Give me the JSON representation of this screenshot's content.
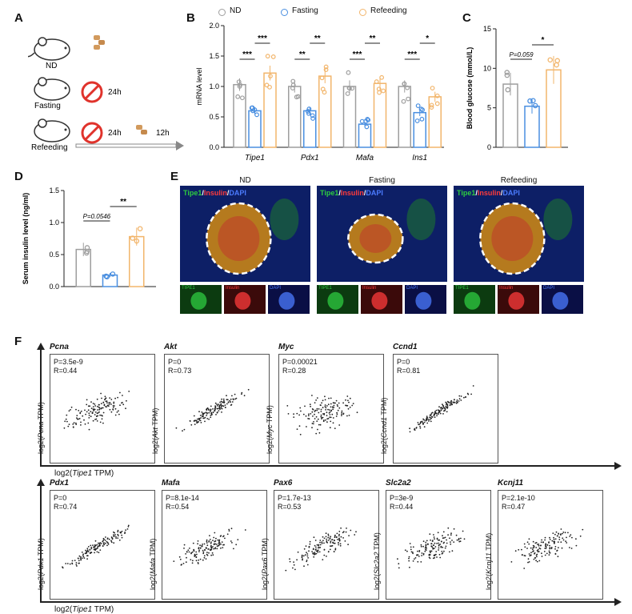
{
  "panel_labels": {
    "a": "A",
    "b": "B",
    "c": "C",
    "d": "D",
    "e": "E",
    "f": "F"
  },
  "panel_a": {
    "groups": [
      {
        "name": "ND",
        "fast": "",
        "refeed": ""
      },
      {
        "name": "Fasting",
        "fast": "24h",
        "refeed": ""
      },
      {
        "name": "Refeeding",
        "fast": "24h",
        "refeed": "12h"
      }
    ]
  },
  "legend": [
    "ND",
    "Fasting",
    "Refeeding"
  ],
  "colors": {
    "nd": "#9e9e9e",
    "fasting": "#4a8fe0",
    "refeeding": "#f2b56b"
  },
  "chart_data": [
    {
      "panel": "B",
      "type": "bar",
      "ylabel": "mRNA level",
      "ylim": [
        0,
        2.0
      ],
      "yticks": [
        "0.0",
        "0.5",
        "1.0",
        "1.5",
        "2.0"
      ],
      "categories": [
        "Tipe1",
        "Pdx1",
        "Mafa",
        "Ins1"
      ],
      "series": [
        {
          "name": "ND",
          "values": [
            1.03,
            1.0,
            1.0,
            1.0
          ]
        },
        {
          "name": "Fasting",
          "values": [
            0.6,
            0.6,
            0.38,
            0.57
          ]
        },
        {
          "name": "Refeeding",
          "values": [
            1.22,
            1.17,
            1.05,
            0.83
          ]
        }
      ],
      "annotations": [
        {
          "pair": "ND-Fasting",
          "labels": [
            "***",
            "**",
            "***",
            "***"
          ]
        },
        {
          "pair": "Fasting-Refeeding",
          "labels": [
            "***",
            "**",
            "**",
            "*"
          ]
        }
      ]
    },
    {
      "panel": "C",
      "type": "bar",
      "ylabel": "Blood glucose (mmol/L)",
      "ylim": [
        0,
        15
      ],
      "yticks": [
        "0",
        "5",
        "10",
        "15"
      ],
      "categories": [
        "ND",
        "Fasting",
        "Refeeding"
      ],
      "values": [
        8.0,
        5.2,
        9.8
      ],
      "annotations": [
        {
          "pair": "ND-Fasting",
          "label": "P=0.059"
        },
        {
          "pair": "Fasting-Refeeding",
          "label": "*"
        }
      ]
    },
    {
      "panel": "D",
      "type": "bar",
      "ylabel": "Serum insulin level (ng/ml)",
      "ylim": [
        0,
        1.5
      ],
      "yticks": [
        "0.0",
        "0.5",
        "1.0",
        "1.5"
      ],
      "categories": [
        "ND",
        "Fasting",
        "Refeeding"
      ],
      "values": [
        0.58,
        0.18,
        0.78
      ],
      "annotations": [
        {
          "pair": "ND-Fasting",
          "label": "P=0.0546"
        },
        {
          "pair": "Fasting-Refeeding",
          "label": "**"
        }
      ]
    }
  ],
  "panel_e": {
    "titles": [
      "ND",
      "Fasting",
      "Refeeding"
    ],
    "label_parts": {
      "tipe1": "Tipe1",
      "sep": "/",
      "insulin": "Insulin",
      "dapi": "DAPI"
    },
    "thumbs": [
      "TIPE1",
      "Insulin",
      "DAPI"
    ]
  },
  "panel_f": {
    "xlabel_prefix": "log2(",
    "xlabel_gene": "Tipe1",
    "xlabel_suffix": " TPM)",
    "ylabel_suffix": " TPM)",
    "rows": [
      [
        {
          "gene": "Pcna",
          "p": "P=3.5e-9",
          "r": "R=0.44"
        },
        {
          "gene": "Akt",
          "p": "P=0",
          "r": "R=0.73"
        },
        {
          "gene": "Myc",
          "p": "P=0.00021",
          "r": "R=0.28"
        },
        {
          "gene": "Ccnd1",
          "p": "P=0",
          "r": "R=0.81"
        }
      ],
      [
        {
          "gene": "Pdx1",
          "p": "P=0",
          "r": "R=0.74"
        },
        {
          "gene": "Mafa",
          "p": "P=8.1e-14",
          "r": "R=0.54"
        },
        {
          "gene": "Pax6",
          "p": "P=1.7e-13",
          "r": "R=0.53"
        },
        {
          "gene": "Slc2a2",
          "p": "P=3e-9",
          "r": "R=0.44"
        },
        {
          "gene": "Kcnj11",
          "p": "P=2.1e-10",
          "r": "R=0.47"
        }
      ]
    ]
  }
}
